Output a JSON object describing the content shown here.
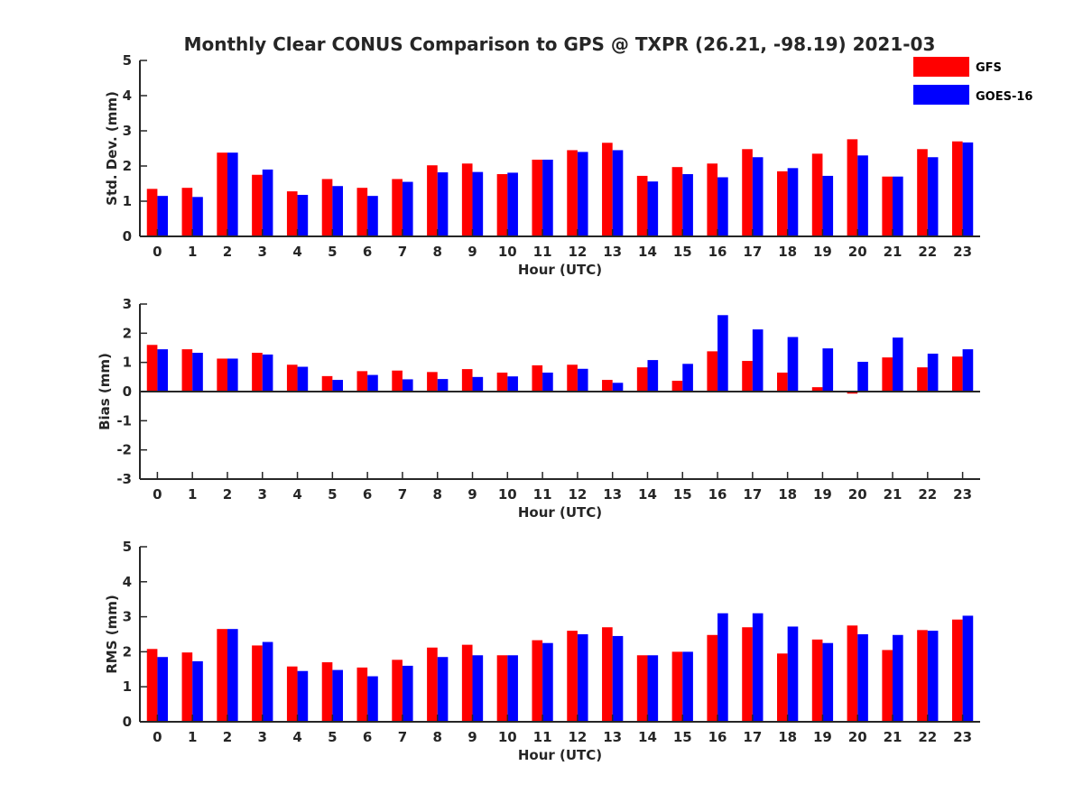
{
  "title": "Monthly Clear CONUS Comparison to GPS @ TXPR (26.21, -98.19) 2021-03",
  "legend": {
    "placement": "top-right",
    "entries": [
      {
        "name": "GFS",
        "color": "#ff0000"
      },
      {
        "name": "GOES-16",
        "color": "#0000ff"
      }
    ]
  },
  "chart_data": [
    {
      "type": "bar",
      "ylabel": "Std. Dev. (mm)",
      "xlabel": "Hour (UTC)",
      "ylim": [
        0,
        5
      ],
      "yticks": [
        0,
        1,
        2,
        3,
        4,
        5
      ],
      "grid": false,
      "categories": [
        "0",
        "1",
        "2",
        "3",
        "4",
        "5",
        "6",
        "7",
        "8",
        "9",
        "10",
        "11",
        "12",
        "13",
        "14",
        "15",
        "16",
        "17",
        "18",
        "19",
        "20",
        "21",
        "22",
        "23"
      ],
      "series": [
        {
          "name": "GFS",
          "color": "#ff0000",
          "values": [
            1.35,
            1.38,
            2.38,
            1.75,
            1.28,
            1.63,
            1.38,
            1.63,
            2.02,
            2.07,
            1.77,
            2.18,
            2.45,
            2.66,
            1.72,
            1.97,
            2.07,
            2.48,
            1.85,
            2.35,
            2.76,
            1.7,
            2.48,
            2.7
          ]
        },
        {
          "name": "GOES-16",
          "color": "#0000ff",
          "values": [
            1.15,
            1.12,
            2.38,
            1.9,
            1.18,
            1.43,
            1.15,
            1.55,
            1.82,
            1.83,
            1.81,
            2.18,
            2.4,
            2.45,
            1.56,
            1.77,
            1.68,
            2.25,
            1.94,
            1.72,
            2.3,
            1.7,
            2.25,
            2.67
          ]
        }
      ]
    },
    {
      "type": "bar",
      "ylabel": "Bias (mm)",
      "xlabel": "Hour (UTC)",
      "ylim": [
        -3,
        3
      ],
      "yticks": [
        -3,
        -2,
        -1,
        0,
        1,
        2,
        3
      ],
      "grid": false,
      "categories": [
        "0",
        "1",
        "2",
        "3",
        "4",
        "5",
        "6",
        "7",
        "8",
        "9",
        "10",
        "11",
        "12",
        "13",
        "14",
        "15",
        "16",
        "17",
        "18",
        "19",
        "20",
        "21",
        "22",
        "23"
      ],
      "series": [
        {
          "name": "GFS",
          "color": "#ff0000",
          "values": [
            1.6,
            1.45,
            1.13,
            1.33,
            0.92,
            0.53,
            0.7,
            0.72,
            0.67,
            0.77,
            0.65,
            0.9,
            0.92,
            0.4,
            0.83,
            0.37,
            1.38,
            1.05,
            0.65,
            0.15,
            -0.07,
            1.17,
            0.83,
            1.2
          ]
        },
        {
          "name": "GOES-16",
          "color": "#0000ff",
          "values": [
            1.45,
            1.33,
            1.13,
            1.27,
            0.85,
            0.4,
            0.57,
            0.42,
            0.43,
            0.5,
            0.52,
            0.65,
            0.78,
            0.3,
            1.08,
            0.95,
            2.62,
            2.13,
            1.87,
            1.48,
            1.02,
            1.85,
            1.3,
            1.45
          ]
        }
      ]
    },
    {
      "type": "bar",
      "ylabel": "RMS (mm)",
      "xlabel": "Hour (UTC)",
      "ylim": [
        0,
        5
      ],
      "yticks": [
        0,
        1,
        2,
        3,
        4,
        5
      ],
      "grid": false,
      "categories": [
        "0",
        "1",
        "2",
        "3",
        "4",
        "5",
        "6",
        "7",
        "8",
        "9",
        "10",
        "11",
        "12",
        "13",
        "14",
        "15",
        "16",
        "17",
        "18",
        "19",
        "20",
        "21",
        "22",
        "23"
      ],
      "series": [
        {
          "name": "GFS",
          "color": "#ff0000",
          "values": [
            2.08,
            1.98,
            2.65,
            2.18,
            1.58,
            1.7,
            1.55,
            1.77,
            2.12,
            2.2,
            1.9,
            2.33,
            2.6,
            2.7,
            1.9,
            2.0,
            2.48,
            2.7,
            1.95,
            2.35,
            2.75,
            2.05,
            2.62,
            2.92
          ]
        },
        {
          "name": "GOES-16",
          "color": "#0000ff",
          "values": [
            1.85,
            1.73,
            2.65,
            2.28,
            1.45,
            1.48,
            1.3,
            1.6,
            1.85,
            1.9,
            1.9,
            2.25,
            2.5,
            2.45,
            1.9,
            2.0,
            3.1,
            3.1,
            2.72,
            2.25,
            2.5,
            2.48,
            2.6,
            3.03
          ]
        }
      ]
    }
  ]
}
